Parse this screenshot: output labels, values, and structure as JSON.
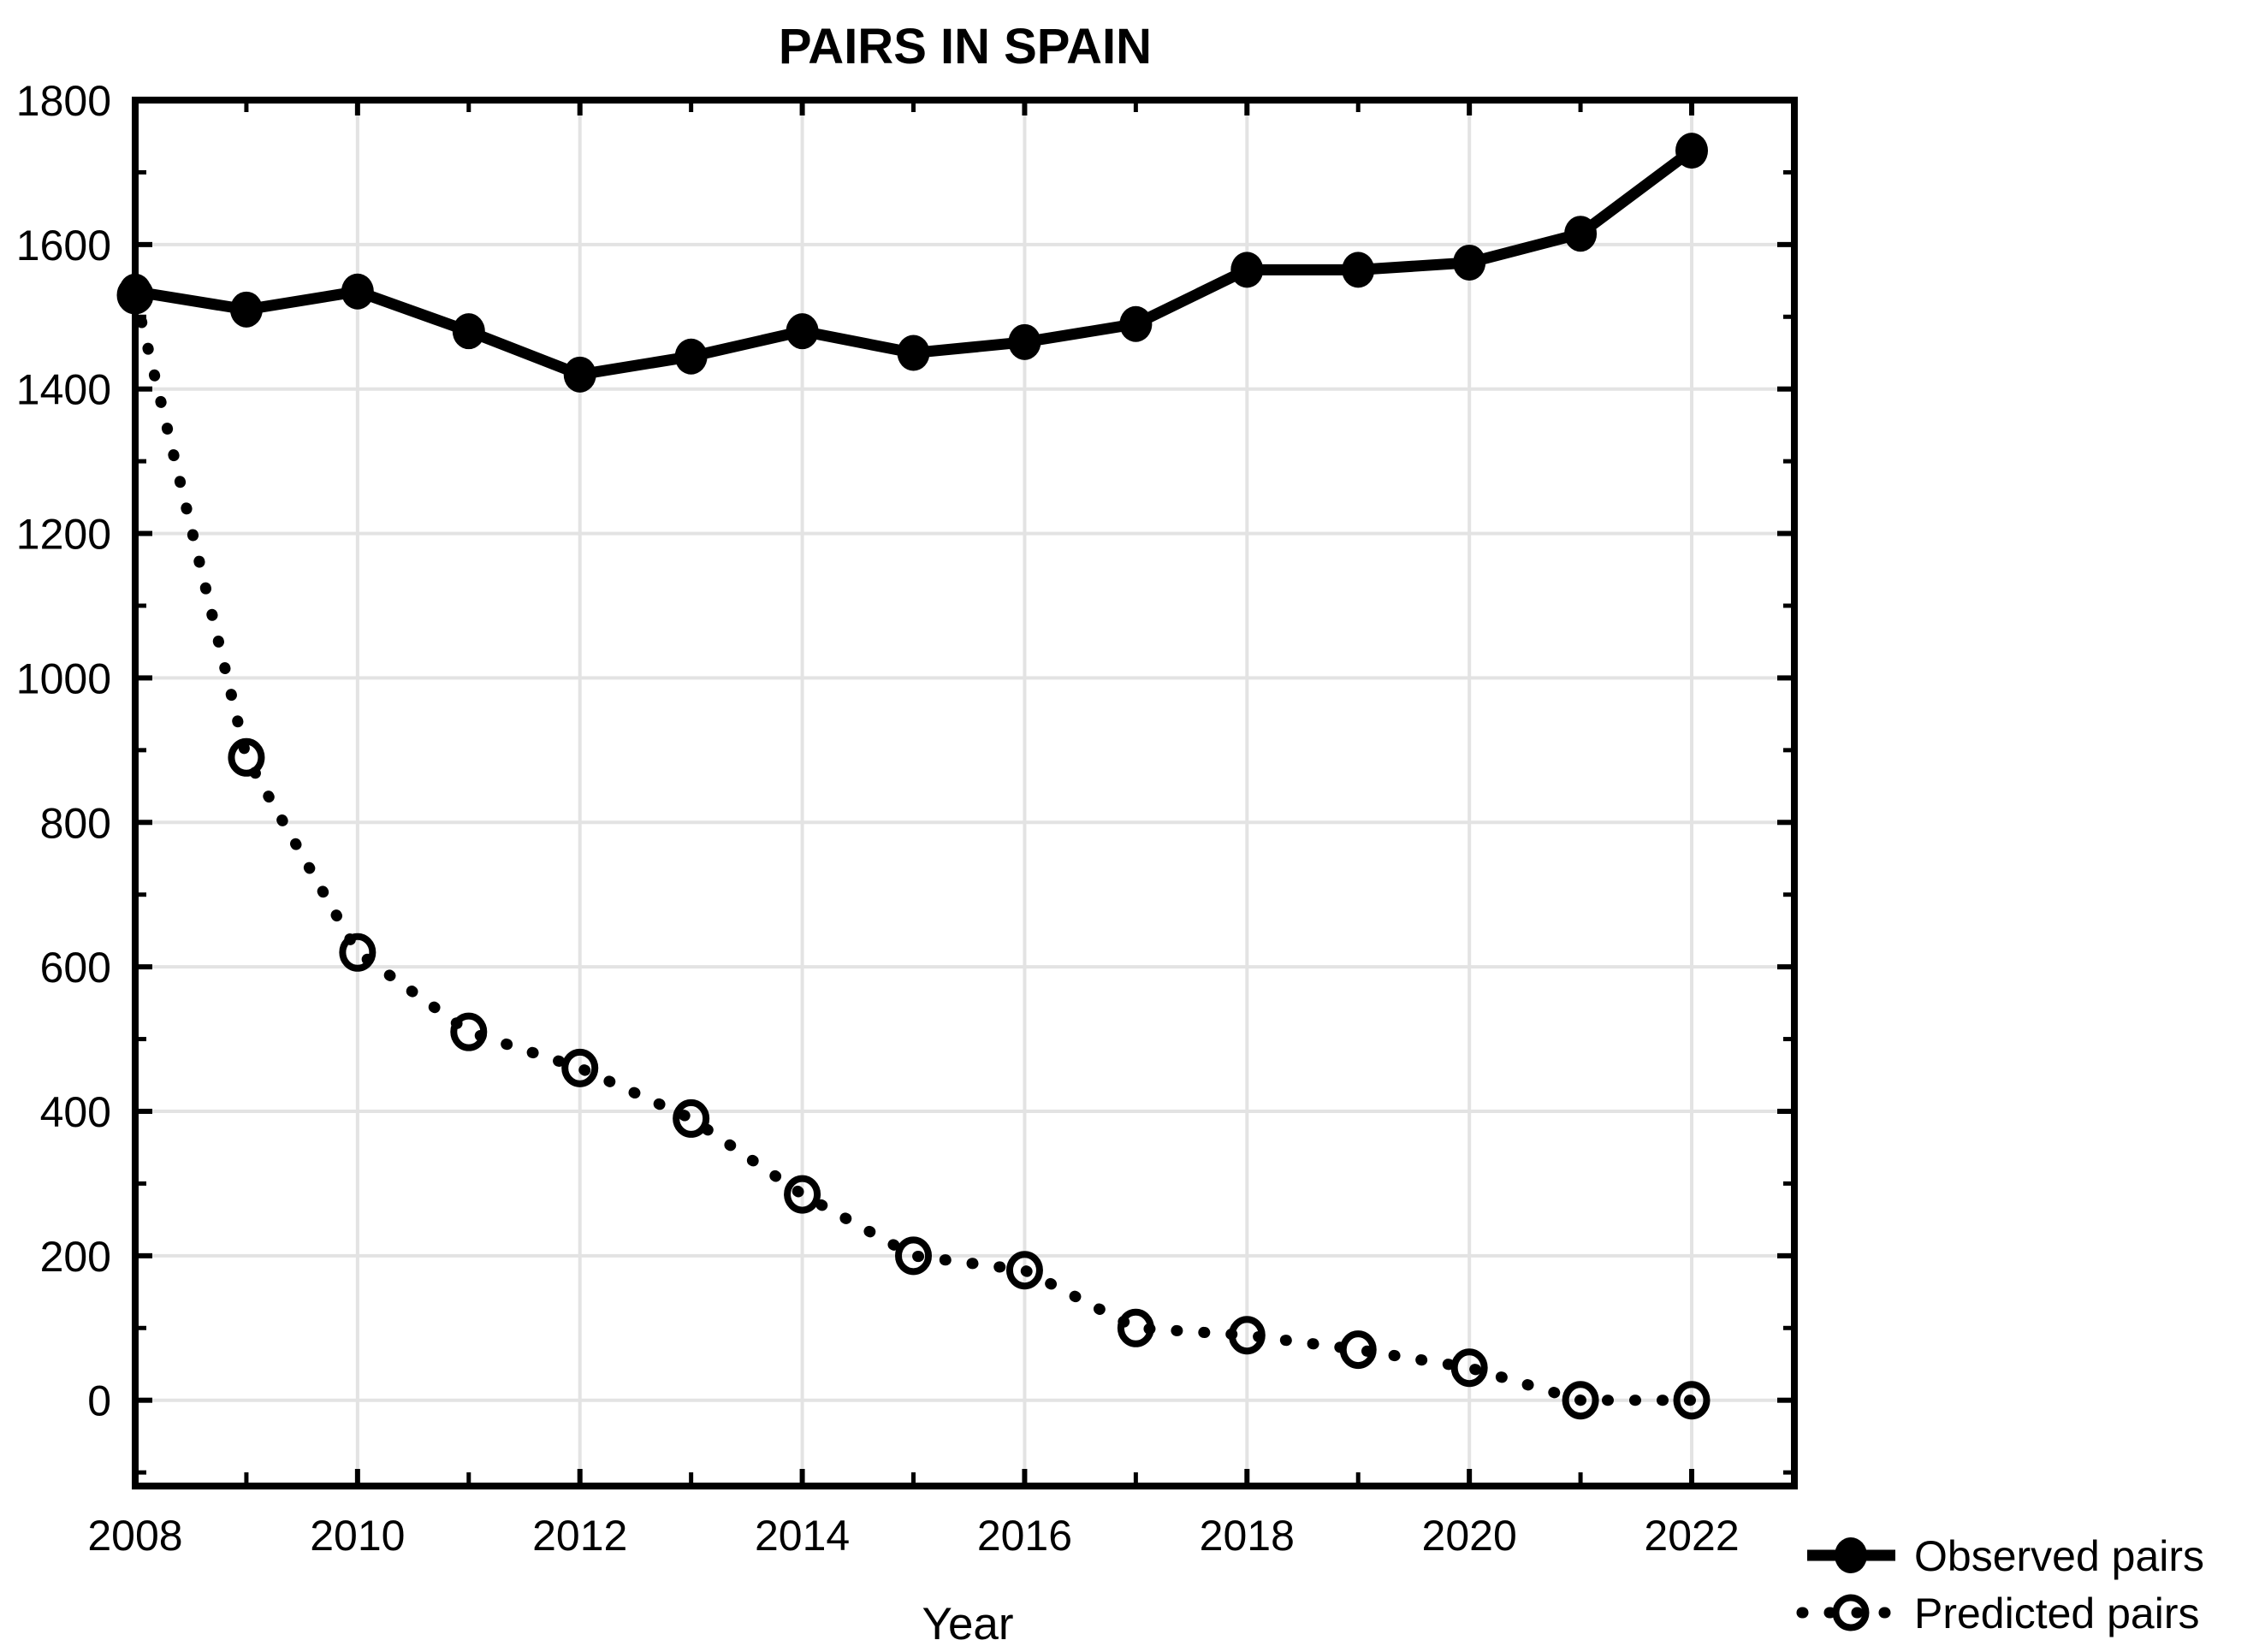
{
  "title": "PAIRS IN SPAIN",
  "axes": {
    "x_title": "Year",
    "x_tick_labels": [
      "2008",
      "2010",
      "2012",
      "2014",
      "2016",
      "2018",
      "2020",
      "2022"
    ],
    "y_tick_labels": [
      "0",
      "200",
      "400",
      "600",
      "800",
      "1000",
      "1200",
      "1400",
      "1600",
      "1800"
    ]
  },
  "legend": {
    "observed_label": "Observed pairs",
    "predicted_label": "Predicted pairs"
  },
  "colors": {
    "foreground": "#000000",
    "background": "#ffffff",
    "gridline": "#e3e3e3"
  },
  "chart_data": {
    "type": "line",
    "title": "PAIRS IN SPAIN",
    "xlabel": "Year",
    "ylabel": "",
    "x": [
      2008,
      2009,
      2010,
      2011,
      2012,
      2013,
      2014,
      2015,
      2016,
      2017,
      2018,
      2019,
      2020,
      2021,
      2022
    ],
    "series": [
      {
        "name": "Observed pairs",
        "line_style": "solid",
        "marker": "filled-circle",
        "values": [
          1535,
          1510,
          1535,
          1480,
          1420,
          1445,
          1480,
          1450,
          1465,
          1490,
          1565,
          1565,
          1575,
          1615,
          1730
        ]
      },
      {
        "name": "Predicted pairs",
        "line_style": "dotted",
        "marker": "open-circle",
        "values": [
          1530,
          890,
          620,
          510,
          460,
          390,
          285,
          200,
          180,
          100,
          90,
          70,
          45,
          0,
          0
        ]
      }
    ],
    "xlim": [
      2008,
      2022.92
    ],
    "ylim": [
      -122,
      1800
    ],
    "x_major_ticks": [
      2008,
      2010,
      2012,
      2014,
      2016,
      2018,
      2020,
      2022
    ],
    "x_minor_ticks": [
      2009,
      2011,
      2013,
      2015,
      2017,
      2019,
      2021
    ],
    "y_major_ticks": [
      0,
      200,
      400,
      600,
      800,
      1000,
      1200,
      1400,
      1600,
      1800
    ],
    "y_minor_ticks": [
      -100,
      100,
      300,
      500,
      700,
      900,
      1100,
      1300,
      1500,
      1700
    ],
    "grid_x_years": [
      2010,
      2012,
      2014,
      2016,
      2018,
      2020,
      2022
    ],
    "grid_y_values": [
      0,
      200,
      400,
      600,
      800,
      1000,
      1200,
      1400,
      1600
    ],
    "grid": true,
    "legend_position": "bottom-right"
  }
}
